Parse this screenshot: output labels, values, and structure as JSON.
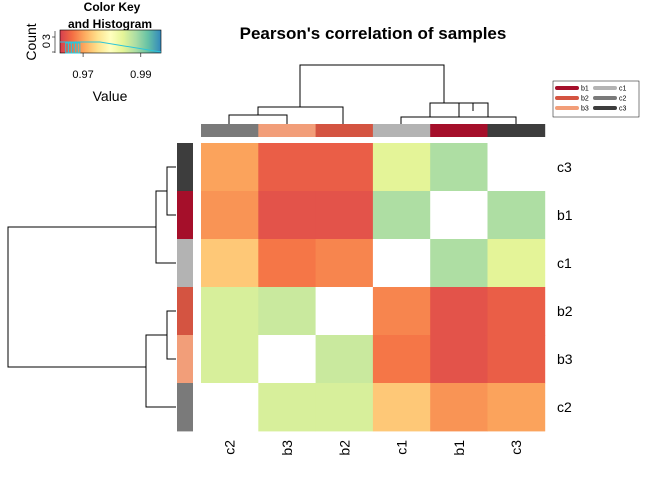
{
  "chart_data": {
    "type": "heatmap",
    "title": "Pearson's correlation of samples",
    "color_key": {
      "title_line1": "Color Key",
      "title_line2": "and Histogram",
      "xlabel": "Value",
      "ylabel": "Count",
      "ytick_labels": [
        "0",
        "3"
      ],
      "xtick_labels": [
        "0.97",
        "0.99"
      ],
      "xticks": [
        0.97,
        0.99
      ],
      "range": [
        0.962,
        0.997
      ],
      "palette": [
        "#d53e4f",
        "#f46d43",
        "#fdae61",
        "#fee08b",
        "#ffffbf",
        "#e6f598",
        "#abdda4",
        "#66c2a5",
        "#3288bd"
      ],
      "histogram_bins": [
        {
          "x": 0.9645,
          "count": 1
        },
        {
          "x": 0.9655,
          "count": 1
        },
        {
          "x": 0.9665,
          "count": 1
        },
        {
          "x": 0.9675,
          "count": 1
        },
        {
          "x": 0.9685,
          "count": 1
        }
      ]
    },
    "rows": [
      "c3",
      "b1",
      "c1",
      "b2",
      "b3",
      "c2"
    ],
    "columns": [
      "c2",
      "b3",
      "b2",
      "c1",
      "b1",
      "c3"
    ],
    "row_groups": [
      "c3",
      "b1",
      "c1",
      "b2",
      "b3",
      "c2"
    ],
    "col_groups": [
      "c2",
      "b3",
      "b2",
      "c1",
      "b1",
      "c3"
    ],
    "values": [
      [
        0.97,
        0.965,
        0.965,
        0.984,
        0.988,
        null
      ],
      [
        0.969,
        0.964,
        0.964,
        0.988,
        null,
        0.988
      ],
      [
        0.973,
        0.967,
        0.968,
        null,
        0.988,
        0.984
      ],
      [
        0.985,
        0.986,
        null,
        0.968,
        0.964,
        0.965
      ],
      [
        0.985,
        null,
        0.986,
        0.967,
        0.964,
        0.965
      ],
      [
        null,
        0.985,
        0.985,
        0.973,
        0.969,
        0.97
      ]
    ],
    "legend": [
      {
        "label": "b1",
        "color": "#a50f2a"
      },
      {
        "label": "b2",
        "color": "#d45441"
      },
      {
        "label": "b3",
        "color": "#f29e79"
      },
      {
        "label": "c1",
        "color": "#b3b3b3"
      },
      {
        "label": "c2",
        "color": "#7a7a7a"
      },
      {
        "label": "c3",
        "color": "#3d3d3d"
      }
    ],
    "legend_placement": "top-right",
    "row_dendrogram": "left",
    "col_dendrogram": "top"
  }
}
